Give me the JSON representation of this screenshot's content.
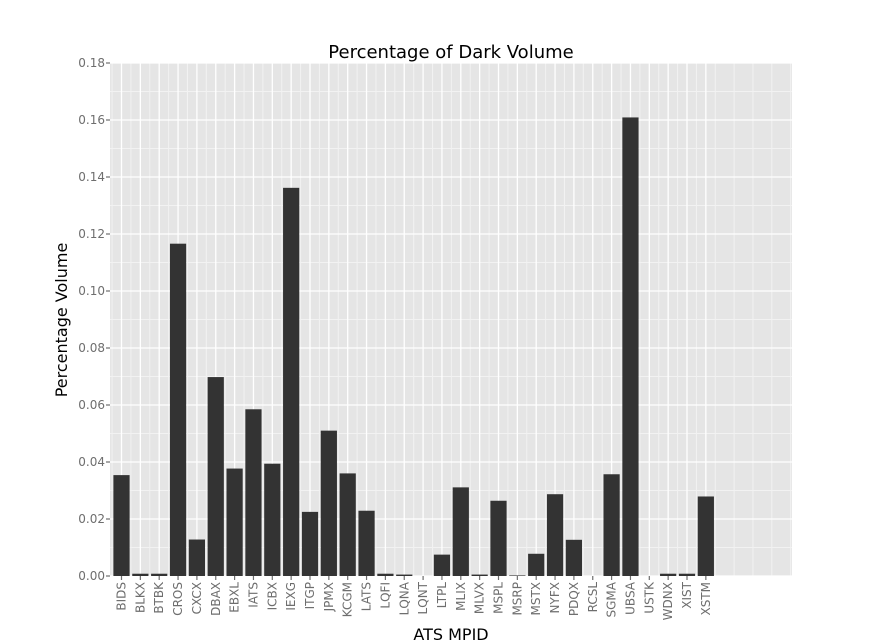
{
  "chart_data": {
    "type": "bar",
    "title": "Percentage of Dark Volume",
    "xlabel": "ATS MPID",
    "ylabel": "Percentage Volume",
    "ylim": [
      0,
      0.18
    ],
    "yticks": [
      "0.00",
      "0.02",
      "0.04",
      "0.06",
      "0.08",
      "0.10",
      "0.12",
      "0.14",
      "0.16",
      "0.18"
    ],
    "grid": true,
    "legend": "none",
    "categories": [
      "BIDS",
      "BLKX",
      "BTBK",
      "CROS",
      "CXCX",
      "DBAX",
      "EBXL",
      "IATS",
      "ICBX",
      "IEXG",
      "ITGP",
      "JPMX",
      "KCGM",
      "LATS",
      "LQFI",
      "LQNA",
      "LQNT",
      "LTPL",
      "MLIX",
      "MLVX",
      "MSPL",
      "MSRP",
      "MSTX",
      "NYFX",
      "PDQX",
      "RCSL",
      "SGMA",
      "UBSA",
      "USTK",
      "WDNX",
      "XIST",
      "XSTM"
    ],
    "values": [
      0.0354,
      0.0008,
      0.0008,
      0.1166,
      0.0128,
      0.0698,
      0.0377,
      0.0585,
      0.0394,
      0.1362,
      0.0225,
      0.051,
      0.036,
      0.0229,
      0.0008,
      0.0005,
      0.0,
      0.0075,
      0.0311,
      0.0005,
      0.0264,
      0.0002,
      0.0078,
      0.0287,
      0.0127,
      0.0,
      0.0357,
      0.1609,
      0.0,
      0.0008,
      0.0008,
      0.0279
    ],
    "colors": {
      "panel": "#e5e5e5",
      "grid_major": "#ffffff",
      "grid_minor": "#f2f2f2",
      "bar": "#333333",
      "tick": "#6e6e6e"
    }
  }
}
